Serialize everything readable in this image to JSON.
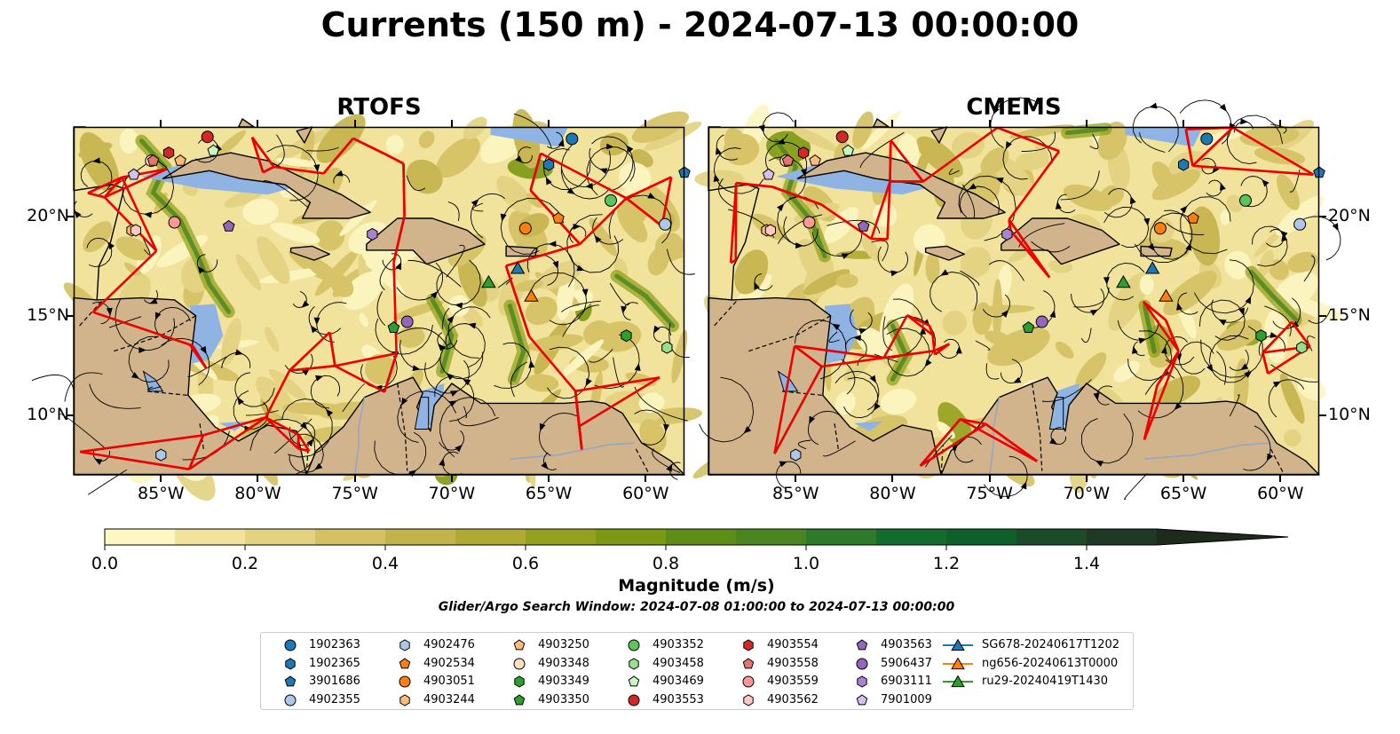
{
  "title": "Currents (150 m) - 2024-07-13 00:00:00",
  "panels": [
    {
      "title": "RTOFS"
    },
    {
      "title": "CMEMS"
    }
  ],
  "axes": {
    "lon_ticks": [
      "85°W",
      "80°W",
      "75°W",
      "70°W",
      "65°W",
      "60°W"
    ],
    "lat_ticks": [
      "20°N",
      "15°N",
      "10°N"
    ],
    "lon_range": [
      -89.5,
      -58.0
    ],
    "lat_range": [
      7.0,
      24.5
    ]
  },
  "colorbar": {
    "label": "Magnitude (m/s)",
    "ticks": [
      "0.0",
      "0.2",
      "0.4",
      "0.6",
      "0.8",
      "1.0",
      "1.2",
      "1.4"
    ],
    "range": [
      0.0,
      1.5
    ],
    "colors": [
      "#fcf7c3",
      "#f1e39c",
      "#e3d281",
      "#d4c163",
      "#c3b34b",
      "#aeaa33",
      "#93a11e",
      "#7c9914",
      "#5f8e18",
      "#48841f",
      "#2d7a28",
      "#136c2e",
      "#0f5f2b",
      "#1b4b29",
      "#1e3925",
      "#1d2a1c"
    ]
  },
  "search_window": "Glider/Argo Search Window: 2024-07-08 01:00:00 to 2024-07-13 00:00:00",
  "colors": {
    "land": "#d2b48c",
    "water": "#8fb4e3",
    "boundary": "#ee0000",
    "streamline": "#000000"
  },
  "legend": [
    {
      "label": "1902363",
      "marker": "circle",
      "color": "#1f77b4"
    },
    {
      "label": "1902365",
      "marker": "hexagon",
      "color": "#1f77b4"
    },
    {
      "label": "3901686",
      "marker": "pentagon",
      "color": "#1f77b4"
    },
    {
      "label": "4902355",
      "marker": "circle",
      "color": "#aec7e8"
    },
    {
      "label": "4902476",
      "marker": "hexagon",
      "color": "#aec7e8"
    },
    {
      "label": "4902534",
      "marker": "pentagon",
      "color": "#ff7f0e"
    },
    {
      "label": "4903051",
      "marker": "circle",
      "color": "#ff7f0e"
    },
    {
      "label": "4903244",
      "marker": "hexagon",
      "color": "#ffbb78"
    },
    {
      "label": "4903250",
      "marker": "pentagon",
      "color": "#ffbb78"
    },
    {
      "label": "4903348",
      "marker": "circle",
      "color": "#ffe0bd"
    },
    {
      "label": "4903349",
      "marker": "hexagon",
      "color": "#2ca02c"
    },
    {
      "label": "4903350",
      "marker": "pentagon",
      "color": "#2ca02c"
    },
    {
      "label": "4903352",
      "marker": "circle",
      "color": "#5cc45c"
    },
    {
      "label": "4903458",
      "marker": "hexagon",
      "color": "#98df8a"
    },
    {
      "label": "4903469",
      "marker": "pentagon",
      "color": "#c9f5c0"
    },
    {
      "label": "4903553",
      "marker": "circle",
      "color": "#d62728"
    },
    {
      "label": "4903554",
      "marker": "hexagon",
      "color": "#d62728"
    },
    {
      "label": "4903558",
      "marker": "pentagon",
      "color": "#e8736f"
    },
    {
      "label": "4903559",
      "marker": "circle",
      "color": "#ff9896"
    },
    {
      "label": "4903562",
      "marker": "hexagon",
      "color": "#ffc8c3"
    },
    {
      "label": "4903563",
      "marker": "pentagon",
      "color": "#9467bd"
    },
    {
      "label": "5906437",
      "marker": "circle",
      "color": "#9467bd"
    },
    {
      "label": "6903111",
      "marker": "hexagon",
      "color": "#a983d2"
    },
    {
      "label": "7901009",
      "marker": "pentagon",
      "color": "#d4c0ef"
    },
    {
      "label": "SG678-20240617T1202",
      "marker": "triangle-line",
      "color": "#1f77b4"
    },
    {
      "label": "ng656-20240613T0000",
      "marker": "triangle-line",
      "color": "#ff7f0e"
    },
    {
      "label": "ru29-20240419T1430",
      "marker": "triangle-line",
      "color": "#2ca02c"
    }
  ],
  "argo_floats": [
    {
      "id": "1902363",
      "lon": -63.8,
      "lat": 23.9
    },
    {
      "id": "1902365",
      "lon": -65.0,
      "lat": 22.6
    },
    {
      "id": "3901686",
      "lon": -58.0,
      "lat": 22.2
    },
    {
      "id": "4902355",
      "lon": -59.0,
      "lat": 19.6
    },
    {
      "id": "4902476",
      "lon": -85.0,
      "lat": 8.0
    },
    {
      "id": "4902534",
      "lon": -64.5,
      "lat": 19.9
    },
    {
      "id": "4903051",
      "lon": -66.2,
      "lat": 19.4
    },
    {
      "id": "4903244",
      "lon": -86.5,
      "lat": 19.3
    },
    {
      "id": "4903250",
      "lon": -84.0,
      "lat": 22.8
    },
    {
      "id": "4903348",
      "lon": -85.5,
      "lat": 22.8
    },
    {
      "id": "4903349",
      "lon": -61.0,
      "lat": 14.0
    },
    {
      "id": "4903350",
      "lon": -73.0,
      "lat": 14.4
    },
    {
      "id": "4903352",
      "lon": -61.8,
      "lat": 20.8
    },
    {
      "id": "4903458",
      "lon": -58.9,
      "lat": 13.4
    },
    {
      "id": "4903469",
      "lon": -82.3,
      "lat": 23.3
    },
    {
      "id": "4903553",
      "lon": -82.6,
      "lat": 24.0
    },
    {
      "id": "4903554",
      "lon": -84.6,
      "lat": 23.2
    },
    {
      "id": "4903558",
      "lon": -85.4,
      "lat": 22.8
    },
    {
      "id": "4903559",
      "lon": -84.3,
      "lat": 19.7
    },
    {
      "id": "4903562",
      "lon": -86.3,
      "lat": 19.3
    },
    {
      "id": "4903563",
      "lon": -81.5,
      "lat": 19.5
    },
    {
      "id": "5906437",
      "lon": -72.3,
      "lat": 14.7
    },
    {
      "id": "6903111",
      "lon": -74.1,
      "lat": 19.1
    },
    {
      "id": "7901009",
      "lon": -86.4,
      "lat": 22.1
    }
  ],
  "gliders": [
    {
      "id": "SG678-20240617T1202",
      "lon": -66.6,
      "lat": 17.4
    },
    {
      "id": "ng656-20240613T0000",
      "lon": -65.9,
      "lat": 16.0
    },
    {
      "id": "ru29-20240419T1430",
      "lon": -68.1,
      "lat": 16.7
    }
  ]
}
